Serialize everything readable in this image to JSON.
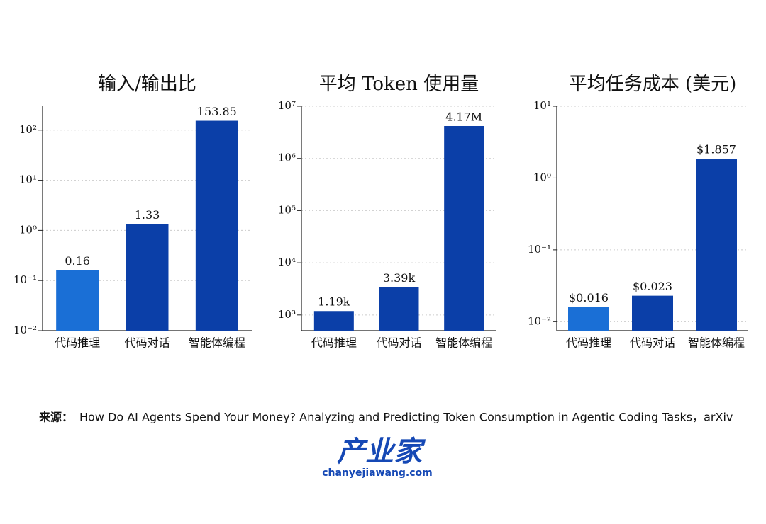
{
  "chart_data": [
    {
      "type": "bar",
      "title": "输入/输出比",
      "categories": [
        "代码推理",
        "代码对话",
        "智能体编程"
      ],
      "values": [
        0.16,
        1.33,
        153.85
      ],
      "colors": [
        "#1a6fd6",
        "#0b3fa8",
        "#0b3fa8"
      ],
      "log_scale": true,
      "grid": true,
      "ylim": [
        0.01,
        300
      ],
      "yticks": [
        {
          "value": 0.01,
          "label": "10⁻²"
        },
        {
          "value": 0.1,
          "label": "10⁻¹"
        },
        {
          "value": 1,
          "label": "10⁰"
        },
        {
          "value": 10,
          "label": "10¹"
        },
        {
          "value": 100,
          "label": "10²"
        }
      ]
    },
    {
      "type": "bar",
      "title": "平均 Token 使用量",
      "categories": [
        "代码推理",
        "代码对话",
        "智能体编程"
      ],
      "values": [
        1190,
        3390,
        4170000
      ],
      "value_labels": [
        "1.19k",
        "3.39k",
        "4.17M"
      ],
      "colors": [
        "#0b3fa8",
        "#0b3fa8",
        "#0b3fa8"
      ],
      "log_scale": true,
      "grid": true,
      "ylim": [
        500,
        10000000
      ],
      "yticks": [
        {
          "value": 1000,
          "label": "10³"
        },
        {
          "value": 10000,
          "label": "10⁴"
        },
        {
          "value": 100000,
          "label": "10⁵"
        },
        {
          "value": 1000000,
          "label": "10⁶"
        },
        {
          "value": 10000000,
          "label": "10⁷"
        }
      ]
    },
    {
      "type": "bar",
      "title": "平均任务成本 (美元)",
      "categories": [
        "代码推理",
        "代码对话",
        "智能体编程"
      ],
      "values": [
        0.016,
        0.023,
        1.857
      ],
      "value_labels": [
        "$0.016",
        "$0.023",
        "$1.857"
      ],
      "colors": [
        "#1a6fd6",
        "#0b3fa8",
        "#0b3fa8"
      ],
      "log_scale": true,
      "grid": true,
      "ylim": [
        0.0075,
        10
      ],
      "yticks": [
        {
          "value": 0.01,
          "label": "10⁻²"
        },
        {
          "value": 0.1,
          "label": "10⁻¹"
        },
        {
          "value": 1,
          "label": "10⁰"
        },
        {
          "value": 10,
          "label": "10¹"
        }
      ]
    }
  ],
  "source": {
    "label": "来源：",
    "text": "How Do AI Agents Spend Your Money? Analyzing and Predicting Token Consumption in Agentic Coding Tasks，arXiv"
  },
  "logo": {
    "name": "产业家",
    "url": "chanyejiawang.com"
  }
}
